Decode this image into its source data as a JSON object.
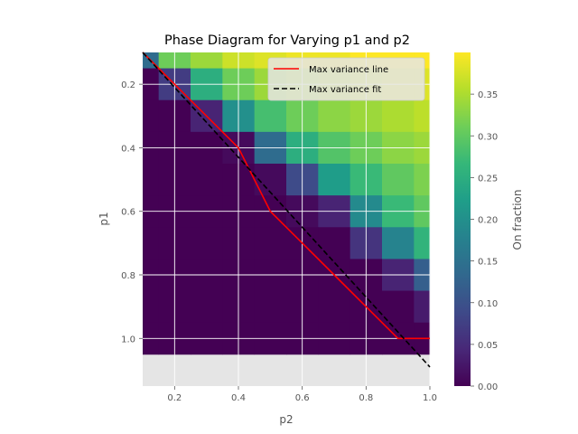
{
  "chart_data": {
    "type": "heatmap",
    "title": "Phase Diagram for Varying p1 and p2",
    "xlabel": "p2",
    "ylabel": "p1",
    "xlim": [
      0.1,
      1.0
    ],
    "ylim": [
      1.15,
      0.1
    ],
    "y_inverted": true,
    "grid": true,
    "background": "#e5e5e5",
    "x_ticks": [
      "0.2",
      "0.4",
      "0.6",
      "0.8",
      "1.0"
    ],
    "y_ticks": [
      "0.2",
      "0.4",
      "0.6",
      "0.8",
      "1.0"
    ],
    "p2_values": [
      0.1,
      0.2,
      0.3,
      0.4,
      0.5,
      0.6,
      0.7,
      0.8,
      0.9,
      1.0
    ],
    "p1_values": [
      0.1,
      0.2,
      0.3,
      0.4,
      0.5,
      0.6,
      0.7,
      0.8,
      0.9,
      1.0
    ],
    "colormap": "viridis",
    "matrix": [
      [
        0.14,
        0.31,
        0.34,
        0.37,
        0.38,
        0.39,
        0.39,
        0.4,
        0.4,
        0.4
      ],
      [
        0.0,
        0.07,
        0.25,
        0.31,
        0.34,
        0.35,
        0.36,
        0.37,
        0.38,
        0.38
      ],
      [
        0.0,
        0.0,
        0.04,
        0.2,
        0.28,
        0.31,
        0.33,
        0.34,
        0.35,
        0.36
      ],
      [
        0.0,
        0.0,
        0.0,
        0.01,
        0.14,
        0.25,
        0.29,
        0.31,
        0.33,
        0.34
      ],
      [
        0.0,
        0.0,
        0.0,
        0.0,
        0.01,
        0.09,
        0.22,
        0.27,
        0.3,
        0.32
      ],
      [
        0.0,
        0.0,
        0.0,
        0.0,
        0.0,
        0.01,
        0.04,
        0.19,
        0.27,
        0.3
      ],
      [
        0.0,
        0.0,
        0.0,
        0.0,
        0.0,
        0.0,
        0.0,
        0.06,
        0.18,
        0.26
      ],
      [
        0.0,
        0.0,
        0.0,
        0.0,
        0.0,
        0.0,
        0.0,
        0.0,
        0.04,
        0.12
      ],
      [
        0.0,
        0.0,
        0.0,
        0.0,
        0.0,
        0.0,
        0.0,
        0.0,
        0.0,
        0.03
      ],
      [
        0.0,
        0.0,
        0.0,
        0.0,
        0.0,
        0.0,
        0.0,
        0.0,
        0.0,
        0.0
      ]
    ],
    "series": [
      {
        "name": "Max variance line",
        "style": "solid",
        "color": "#ff0000",
        "points": [
          [
            0.1,
            0.1
          ],
          [
            0.2,
            0.2
          ],
          [
            0.3,
            0.3
          ],
          [
            0.4,
            0.4
          ],
          [
            0.5,
            0.6
          ],
          [
            0.6,
            0.7
          ],
          [
            0.7,
            0.8
          ],
          [
            0.8,
            0.9
          ],
          [
            0.9,
            1.0
          ],
          [
            1.0,
            1.0
          ]
        ]
      },
      {
        "name": "Max variance fit",
        "style": "dashed",
        "color": "#000000",
        "points": [
          [
            0.1,
            0.1
          ],
          [
            1.0,
            1.09
          ]
        ]
      }
    ],
    "legend_position": "top-right",
    "colorbar": {
      "label": "On fraction",
      "range": [
        0.0,
        0.4
      ],
      "ticks": [
        "0.00",
        "0.05",
        "0.10",
        "0.15",
        "0.20",
        "0.25",
        "0.30",
        "0.35"
      ],
      "tick_values": [
        0.0,
        0.05,
        0.1,
        0.15,
        0.2,
        0.25,
        0.3,
        0.35
      ]
    }
  }
}
